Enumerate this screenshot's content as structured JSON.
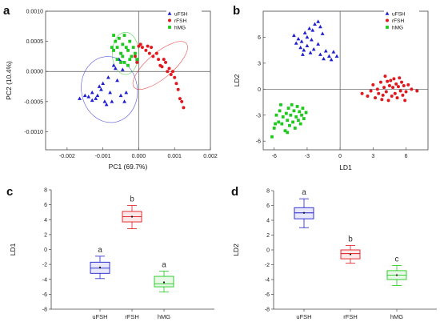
{
  "panels": {
    "a": "a",
    "b": "b",
    "c": "c",
    "d": "d"
  },
  "colors": {
    "uFSH": "#1f1fcf",
    "rFSH": "#e0191e",
    "hMG": "#1ec81e"
  },
  "chart_data": [
    {
      "id": "a",
      "type": "scatter",
      "title": "",
      "xlabel": "PC1 (69.7%)",
      "ylabel": "PC2 (10.4%)",
      "xlim": [
        -0.0026,
        0.002
      ],
      "ylim": [
        -0.0013,
        0.001
      ],
      "xticks": [
        -0.002,
        -0.001,
        0.0,
        0.001,
        0.002
      ],
      "xtick_labels": [
        "-0.002",
        "-0.001",
        "0.000",
        "0.001",
        "0.002"
      ],
      "yticks": [
        -0.001,
        -0.0005,
        0.0,
        0.0005,
        0.001
      ],
      "ytick_labels": [
        "-0.0010",
        "-0.0005",
        "0.0000",
        "0.0005",
        "0.0010"
      ],
      "reference_lines": {
        "x": 0,
        "y": 0
      },
      "legend": {
        "position": "top-right",
        "entries": [
          "uFSH",
          "rFSH",
          "hMG"
        ]
      },
      "ellipses": [
        {
          "series": "uFSH",
          "cx": -0.00082,
          "cy": -0.0003,
          "rx": 0.00078,
          "ry": 0.00055,
          "angle_deg": -10
        },
        {
          "series": "rFSH",
          "cx": 0.0006,
          "cy": 0.0001,
          "rx": 0.00095,
          "ry": 0.00021,
          "angle_deg": -40
        },
        {
          "series": "hMG",
          "cx": -0.00037,
          "cy": 0.0003,
          "rx": 0.00037,
          "ry": 0.00035,
          "angle_deg": 0
        }
      ],
      "series": [
        {
          "name": "uFSH",
          "marker": "triangle",
          "points": [
            [
              -0.00165,
              -0.00045
            ],
            [
              -0.0015,
              -0.0004
            ],
            [
              -0.0014,
              -0.00042
            ],
            [
              -0.0013,
              -0.00048
            ],
            [
              -0.0012,
              -0.00045
            ],
            [
              -0.00115,
              -0.0004
            ],
            [
              -0.00105,
              -0.0003
            ],
            [
              -0.001,
              -0.0002
            ],
            [
              -0.00095,
              -0.0005
            ],
            [
              -0.0009,
              -0.00055
            ],
            [
              -0.00085,
              -0.0001
            ],
            [
              -0.0008,
              -0.00035
            ],
            [
              -0.00075,
              -0.0005
            ],
            [
              -0.0007,
              0.0001
            ],
            [
              -0.00065,
              5e-05
            ],
            [
              -0.0006,
              -0.00015
            ],
            [
              -0.00055,
              0.0002
            ],
            [
              -0.0005,
              -0.0004
            ],
            [
              -0.00045,
              3e-05
            ],
            [
              -0.0004,
              -0.0005
            ],
            [
              -0.00035,
              -0.00035
            ],
            [
              -0.0013,
              -0.00035
            ],
            [
              -0.0011,
              -0.00025
            ]
          ]
        },
        {
          "name": "rFSH",
          "marker": "circle",
          "points": [
            [
              0.0,
              0.00042
            ],
            [
              5e-05,
              0.00045
            ],
            [
              0.0001,
              0.0004
            ],
            [
              0.0002,
              0.00035
            ],
            [
              0.00025,
              0.00042
            ],
            [
              0.0003,
              0.0003
            ],
            [
              0.00035,
              0.0004
            ],
            [
              0.0004,
              0.00025
            ],
            [
              0.0005,
              0.0003
            ],
            [
              0.00055,
              0.0002
            ],
            [
              0.0006,
              0.0001
            ],
            [
              0.0007,
              0.0002
            ],
            [
              0.00075,
              0.00015
            ],
            [
              0.0008,
              0.0
            ],
            [
              0.00085,
              5e-05
            ],
            [
              0.0009,
              -5e-05
            ],
            [
              0.00095,
              0.0
            ],
            [
              0.001,
              -0.0001
            ],
            [
              0.00105,
              -0.0002
            ],
            [
              0.0011,
              -0.0003
            ],
            [
              0.00115,
              -0.00045
            ],
            [
              0.0012,
              -0.0005
            ],
            [
              0.00125,
              -0.0006
            ],
            [
              0.00065,
              8e-05
            ],
            [
              -0.0001,
              0.00025
            ],
            [
              -5e-05,
              0.00015
            ]
          ]
        },
        {
          "name": "hMG",
          "marker": "square",
          "points": [
            [
              -0.0007,
              0.0006
            ],
            [
              -0.00065,
              0.0005
            ],
            [
              -0.0006,
              0.0004
            ],
            [
              -0.00055,
              0.00055
            ],
            [
              -0.0005,
              0.0003
            ],
            [
              -0.00045,
              0.00045
            ],
            [
              -0.0004,
              0.0006
            ],
            [
              -0.00035,
              0.0004
            ],
            [
              -0.0003,
              0.00035
            ],
            [
              -0.00025,
              0.0005
            ],
            [
              -0.0002,
              0.00025
            ],
            [
              -0.00015,
              0.0004
            ],
            [
              -0.0001,
              0.0003
            ],
            [
              -5e-05,
              0.0002
            ],
            [
              -0.0006,
              0.0002
            ],
            [
              -0.0005,
              0.00015
            ],
            [
              -0.0004,
              0.00015
            ],
            [
              -0.0003,
              0.0001
            ],
            [
              -0.0007,
              0.00035
            ],
            [
              -0.00045,
              0.00025
            ],
            [
              -0.00025,
              0.0002
            ],
            [
              -0.00075,
              0.0004
            ]
          ]
        }
      ]
    },
    {
      "id": "b",
      "type": "scatter",
      "title": "",
      "xlabel": "LD1",
      "ylabel": "LD2",
      "xlim": [
        -7,
        8
      ],
      "ylim": [
        -7,
        9
      ],
      "xticks": [
        -6,
        -3,
        0,
        3,
        6
      ],
      "xtick_labels": [
        "-6",
        "-3",
        "0",
        "3",
        "6"
      ],
      "yticks": [
        -6,
        -3,
        0,
        3,
        6
      ],
      "ytick_labels": [
        "-6",
        "-3",
        "0",
        "3",
        "6"
      ],
      "reference_lines": {
        "x": 0,
        "y": 0
      },
      "legend": {
        "position": "top-right",
        "entries": [
          "uFSH",
          "rFSH",
          "hMG"
        ]
      },
      "series": [
        {
          "name": "uFSH",
          "marker": "triangle",
          "points": [
            [
              -4.2,
              6.2
            ],
            [
              -3.8,
              5.8
            ],
            [
              -3.5,
              5.5
            ],
            [
              -3.2,
              6.5
            ],
            [
              -3.0,
              6.0
            ],
            [
              -2.8,
              7.0
            ],
            [
              -2.5,
              6.8
            ],
            [
              -2.3,
              7.5
            ],
            [
              -2.0,
              7.8
            ],
            [
              -1.8,
              7.2
            ],
            [
              -3.6,
              4.8
            ],
            [
              -3.3,
              4.5
            ],
            [
              -3.0,
              5.0
            ],
            [
              -2.7,
              4.2
            ],
            [
              -2.4,
              4.6
            ],
            [
              -2.0,
              5.2
            ],
            [
              -1.8,
              4.0
            ],
            [
              -1.5,
              3.5
            ],
            [
              -1.3,
              4.4
            ],
            [
              -1.0,
              3.8
            ],
            [
              -0.6,
              4.3
            ],
            [
              -0.3,
              3.8
            ],
            [
              -0.8,
              3.4
            ],
            [
              -4.0,
              5.3
            ],
            [
              -3.4,
              4.0
            ],
            [
              -2.6,
              5.7
            ],
            [
              -1.6,
              6.4
            ]
          ]
        },
        {
          "name": "rFSH",
          "marker": "circle",
          "points": [
            [
              2.0,
              -0.5
            ],
            [
              2.5,
              -0.8
            ],
            [
              2.8,
              -0.2
            ],
            [
              3.0,
              0.5
            ],
            [
              3.2,
              -1.0
            ],
            [
              3.4,
              0.0
            ],
            [
              3.5,
              -0.5
            ],
            [
              3.7,
              0.8
            ],
            [
              3.8,
              -1.2
            ],
            [
              4.0,
              0.2
            ],
            [
              4.1,
              1.5
            ],
            [
              4.2,
              -0.3
            ],
            [
              4.3,
              0.9
            ],
            [
              4.4,
              -1.3
            ],
            [
              4.5,
              0.4
            ],
            [
              4.6,
              1.0
            ],
            [
              4.7,
              -0.8
            ],
            [
              4.8,
              0.2
            ],
            [
              4.9,
              1.2
            ],
            [
              5.0,
              -0.5
            ],
            [
              5.1,
              0.6
            ],
            [
              5.2,
              -1.0
            ],
            [
              5.3,
              0.3
            ],
            [
              5.4,
              1.3
            ],
            [
              5.5,
              -0.2
            ],
            [
              5.6,
              0.8
            ],
            [
              5.7,
              -0.7
            ],
            [
              5.8,
              0.4
            ],
            [
              6.0,
              -0.3
            ],
            [
              6.2,
              0.5
            ],
            [
              6.5,
              0.0
            ],
            [
              7.0,
              -0.2
            ],
            [
              5.9,
              -1.3
            ],
            [
              3.9,
              -0.7
            ]
          ]
        },
        {
          "name": "hMG",
          "marker": "square",
          "points": [
            [
              -6.2,
              -5.5
            ],
            [
              -6.0,
              -4.5
            ],
            [
              -5.8,
              -3.0
            ],
            [
              -5.6,
              -3.8
            ],
            [
              -5.5,
              -2.5
            ],
            [
              -5.3,
              -4.0
            ],
            [
              -5.2,
              -3.2
            ],
            [
              -5.0,
              -4.8
            ],
            [
              -4.9,
              -2.8
            ],
            [
              -4.8,
              -3.6
            ],
            [
              -4.7,
              -2.2
            ],
            [
              -4.6,
              -4.2
            ],
            [
              -4.5,
              -3.0
            ],
            [
              -4.4,
              -1.8
            ],
            [
              -4.3,
              -3.8
            ],
            [
              -4.2,
              -2.5
            ],
            [
              -4.1,
              -4.5
            ],
            [
              -4.0,
              -3.2
            ],
            [
              -3.9,
              -2.0
            ],
            [
              -3.8,
              -3.6
            ],
            [
              -3.7,
              -2.6
            ],
            [
              -3.6,
              -4.0
            ],
            [
              -3.5,
              -3.0
            ],
            [
              -3.4,
              -2.2
            ],
            [
              -3.3,
              -3.4
            ],
            [
              -3.1,
              -2.7
            ],
            [
              -5.9,
              -4.0
            ],
            [
              -5.4,
              -1.8
            ],
            [
              -4.8,
              -5.0
            ]
          ]
        }
      ]
    },
    {
      "id": "c",
      "type": "box",
      "title": "",
      "xlabel": "",
      "ylabel": "LD1",
      "ylim": [
        -8,
        8
      ],
      "yticks": [
        -8,
        -6,
        -4,
        -2,
        0,
        2,
        4,
        6,
        8
      ],
      "ytick_labels": [
        "-8",
        "-6",
        "-4",
        "-2",
        "0",
        "2",
        "4",
        "6",
        "8"
      ],
      "categories": [
        "uFSH",
        "rFSH",
        "hMG"
      ],
      "boxes": [
        {
          "name": "uFSH",
          "min": -3.9,
          "q1": -3.2,
          "median": -2.5,
          "mean": -2.4,
          "q3": -1.7,
          "max": -0.9,
          "letter": "a"
        },
        {
          "name": "rFSH",
          "min": 2.8,
          "q1": 3.7,
          "median": 4.4,
          "mean": 4.4,
          "q3": 5.1,
          "max": 5.9,
          "letter": "b"
        },
        {
          "name": "hMG",
          "min": -5.7,
          "q1": -5.0,
          "median": -4.6,
          "mean": -4.4,
          "q3": -3.6,
          "max": -2.9,
          "letter": "a"
        }
      ]
    },
    {
      "id": "d",
      "type": "box",
      "title": "",
      "xlabel": "",
      "ylabel": "LD2",
      "ylim": [
        -8,
        8
      ],
      "yticks": [
        -8,
        -6,
        -4,
        -2,
        0,
        2,
        4,
        6,
        8
      ],
      "ytick_labels": [
        "-8",
        "-6",
        "-4",
        "-2",
        "0",
        "2",
        "4",
        "6",
        "8"
      ],
      "categories": [
        "uFSH",
        "rFSH",
        "hMG"
      ],
      "boxes": [
        {
          "name": "uFSH",
          "min": 3.0,
          "q1": 4.2,
          "median": 5.0,
          "mean": 5.0,
          "q3": 5.7,
          "max": 6.9,
          "letter": "a"
        },
        {
          "name": "rFSH",
          "min": -1.8,
          "q1": -1.2,
          "median": -0.5,
          "mean": -0.6,
          "q3": 0.0,
          "max": 0.6,
          "letter": "b"
        },
        {
          "name": "hMG",
          "min": -4.8,
          "q1": -4.0,
          "median": -3.4,
          "mean": -3.4,
          "q3": -2.8,
          "max": -2.1,
          "letter": "c"
        }
      ]
    }
  ]
}
